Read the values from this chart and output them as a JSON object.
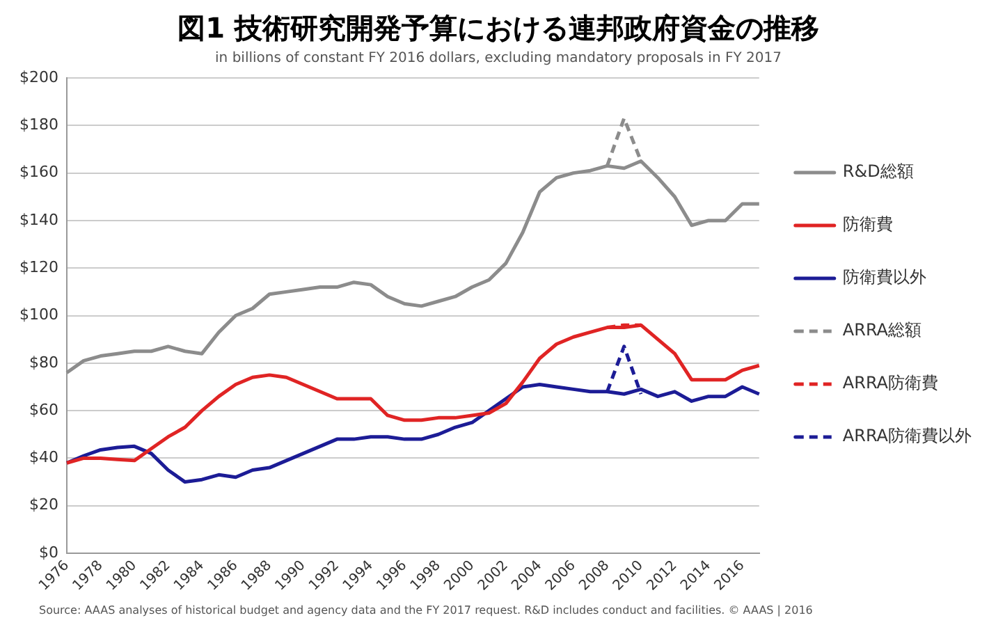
{
  "chart_data": {
    "type": "line",
    "title": "図1 技術研究開発予算における連邦政府資金の推移",
    "subtitle": "in billions of constant FY 2016 dollars, excluding mandatory proposals in FY 2017",
    "categories": [
      "1976",
      null,
      "1978",
      null,
      "1980",
      null,
      "1982",
      null,
      "1984",
      null,
      "1986",
      null,
      "1988",
      null,
      "1990",
      null,
      "1992",
      null,
      "1994",
      null,
      "1996",
      null,
      "1998",
      null,
      "2000",
      null,
      "2002",
      null,
      "2004",
      null,
      "2006",
      null,
      "2008",
      null,
      "2010",
      null,
      "2012",
      null,
      "2014",
      null,
      "2016",
      null
    ],
    "series": [
      {
        "name": "R&D総額",
        "color": "#8c8c8c",
        "values": [
          76,
          81,
          83,
          84,
          85,
          85,
          87,
          85,
          84,
          93,
          100,
          103,
          109,
          110,
          111,
          112,
          112,
          114,
          113,
          108,
          105,
          104,
          106,
          108,
          112,
          115,
          122,
          135,
          152,
          158,
          160,
          161,
          163,
          162,
          165,
          158,
          150,
          138,
          140,
          140,
          147,
          147
        ]
      },
      {
        "name": "防衛費",
        "color": "#e02424",
        "values": [
          38,
          40,
          40,
          39.5,
          39,
          44,
          49,
          53,
          60,
          66,
          71,
          74,
          75,
          74,
          71,
          68,
          65,
          65,
          65,
          58,
          56,
          56,
          57,
          57,
          58,
          59,
          63,
          72,
          82,
          88,
          91,
          93,
          95,
          95,
          96,
          90,
          84,
          73,
          73,
          73,
          77,
          79
        ]
      },
      {
        "name": "防衛費以外",
        "color": "#1c1c96",
        "values": [
          38,
          41,
          43.5,
          44.5,
          45,
          42,
          35,
          30,
          31,
          33,
          32,
          35,
          36,
          39,
          42,
          45,
          48,
          48,
          49,
          49,
          48,
          48,
          50,
          53,
          55,
          60,
          65,
          70,
          71,
          70,
          69,
          68,
          68,
          67,
          69,
          66,
          68,
          64,
          66,
          66,
          70,
          67
        ]
      },
      {
        "name": "ARRA総額",
        "color": "#8c8c8c",
        "line_style": "dashed",
        "values": [
          null,
          null,
          null,
          null,
          null,
          null,
          null,
          null,
          null,
          null,
          null,
          null,
          null,
          null,
          null,
          null,
          null,
          null,
          null,
          null,
          null,
          null,
          null,
          null,
          null,
          null,
          null,
          null,
          null,
          null,
          null,
          null,
          163,
          183,
          165,
          null,
          null,
          null,
          null,
          null,
          null,
          null
        ]
      },
      {
        "name": "ARRA防衛費",
        "color": "#e02424",
        "line_style": "dashed",
        "values": [
          null,
          null,
          null,
          null,
          null,
          null,
          null,
          null,
          null,
          null,
          null,
          null,
          null,
          null,
          null,
          null,
          null,
          null,
          null,
          null,
          null,
          null,
          null,
          null,
          null,
          null,
          null,
          null,
          null,
          null,
          null,
          null,
          95,
          96,
          96,
          null,
          null,
          null,
          null,
          null,
          null,
          null
        ]
      },
      {
        "name": "ARRA防衛費以外",
        "color": "#1c1c96",
        "line_style": "dashed",
        "values": [
          null,
          null,
          null,
          null,
          null,
          null,
          null,
          null,
          null,
          null,
          null,
          null,
          null,
          null,
          null,
          null,
          null,
          null,
          null,
          null,
          null,
          null,
          null,
          null,
          null,
          null,
          null,
          null,
          null,
          null,
          null,
          null,
          68,
          87,
          67,
          null,
          null,
          null,
          null,
          null,
          null,
          null
        ]
      }
    ],
    "ylim": [
      0,
      200
    ],
    "yticks": [
      {
        "value": 0,
        "label": "$0"
      },
      {
        "value": 20,
        "label": "$20"
      },
      {
        "value": 40,
        "label": "$40"
      },
      {
        "value": 60,
        "label": "$60"
      },
      {
        "value": 80,
        "label": "$80"
      },
      {
        "value": 100,
        "label": "$100"
      },
      {
        "value": 120,
        "label": "$120"
      },
      {
        "value": 140,
        "label": "$140"
      },
      {
        "value": 160,
        "label": "$160"
      },
      {
        "value": 180,
        "label": "$180"
      },
      {
        "value": 200,
        "label": "$200"
      }
    ],
    "grid": "y",
    "legend": "right",
    "marker": "none",
    "line_style": "solid",
    "annotations": [
      "Source: AAAS analyses of historical budget and agency data and the FY 2017 request. R&D includes conduct and facilities. © AAAS | 2016"
    ]
  }
}
